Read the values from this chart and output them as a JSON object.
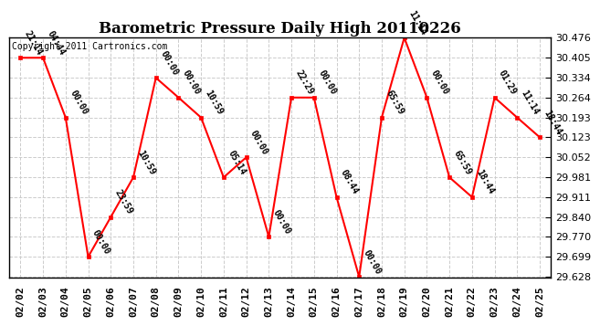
{
  "title": "Barometric Pressure Daily High 20110226",
  "copyright": "Copyright 2011 Cartronics.com",
  "x_labels": [
    "02/02",
    "02/03",
    "02/04",
    "02/05",
    "02/06",
    "02/07",
    "02/08",
    "02/09",
    "02/10",
    "02/11",
    "02/12",
    "02/13",
    "02/14",
    "02/15",
    "02/16",
    "02/17",
    "02/18",
    "02/19",
    "02/20",
    "02/21",
    "02/22",
    "02/23",
    "02/24",
    "02/25"
  ],
  "y_values": [
    30.405,
    30.405,
    30.193,
    29.699,
    29.84,
    29.981,
    30.334,
    30.264,
    30.193,
    29.981,
    30.052,
    29.77,
    30.264,
    30.264,
    29.911,
    29.628,
    30.193,
    30.476,
    30.264,
    29.981,
    29.911,
    30.264,
    30.193,
    30.123
  ],
  "point_labels": [
    "21:14",
    "04:44",
    "00:00",
    "00:00",
    "23:59",
    "10:59",
    "00:00",
    "00:00",
    "10:59",
    "05:14",
    "00:00",
    "00:00",
    "22:29",
    "00:00",
    "08:44",
    "00:00",
    "65:59",
    "11:14",
    "00:00",
    "65:59",
    "18:44",
    "01:29",
    "11:14",
    "18:44"
  ],
  "yticks": [
    29.628,
    29.699,
    29.77,
    29.84,
    29.911,
    29.981,
    30.052,
    30.123,
    30.193,
    30.264,
    30.334,
    30.405,
    30.476
  ],
  "ylim_min": 29.628,
  "ylim_max": 30.476,
  "line_color": "red",
  "marker_color": "red",
  "grid_color": "#cccccc",
  "bg_color": "#ffffff",
  "title_fontsize": 12,
  "tick_fontsize": 8,
  "annot_fontsize": 7,
  "copyright_fontsize": 7
}
